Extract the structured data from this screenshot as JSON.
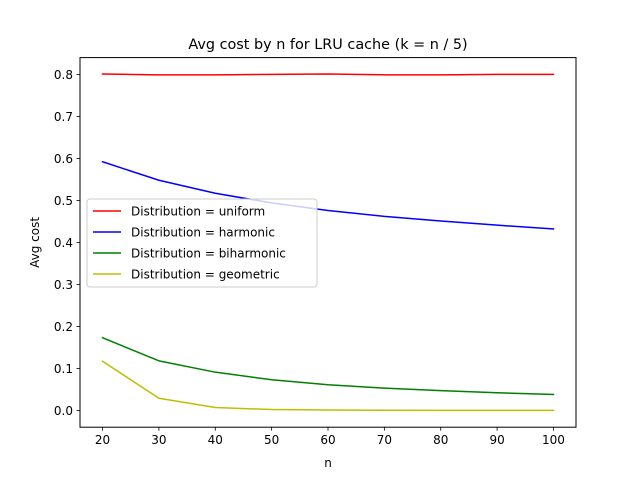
{
  "chart_data": {
    "type": "line",
    "title": "Avg cost by n for LRU cache (k = n / 5)",
    "xlabel": "n",
    "ylabel": "Avg cost",
    "x": [
      20,
      30,
      40,
      50,
      60,
      70,
      80,
      90,
      100
    ],
    "xlim": [
      16,
      104
    ],
    "ylim": [
      -0.04,
      0.84
    ],
    "x_ticks": [
      20,
      30,
      40,
      50,
      60,
      70,
      80,
      90,
      100
    ],
    "y_ticks": [
      0.0,
      0.1,
      0.2,
      0.3,
      0.4,
      0.5,
      0.6,
      0.7,
      0.8
    ],
    "y_tick_labels": [
      "0.0",
      "0.1",
      "0.2",
      "0.3",
      "0.4",
      "0.5",
      "0.6",
      "0.7",
      "0.8"
    ],
    "grid": false,
    "legend_position": "center-left",
    "series": [
      {
        "name": "Distribution = uniform",
        "color": "#ff0000",
        "values": [
          0.801,
          0.799,
          0.799,
          0.8,
          0.801,
          0.799,
          0.799,
          0.8,
          0.8
        ]
      },
      {
        "name": "Distribution = harmonic",
        "color": "#0000ff",
        "values": [
          0.592,
          0.548,
          0.517,
          0.494,
          0.476,
          0.462,
          0.451,
          0.441,
          0.432
        ]
      },
      {
        "name": "Distribution = biharmonic",
        "color": "#008000",
        "values": [
          0.173,
          0.118,
          0.091,
          0.073,
          0.061,
          0.053,
          0.047,
          0.042,
          0.038
        ]
      },
      {
        "name": "Distribution = geometric",
        "color": "#bfbf00",
        "values": [
          0.117,
          0.029,
          0.007,
          0.002,
          0.0008,
          0.0003,
          0.0001,
          0.0,
          0.0
        ]
      }
    ]
  }
}
